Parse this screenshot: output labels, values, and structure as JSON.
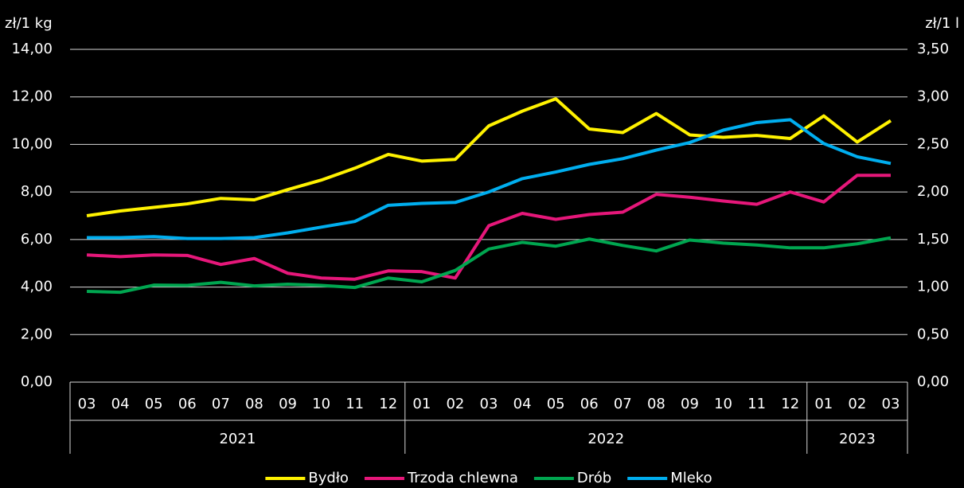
{
  "chart_data": {
    "type": "line",
    "y_label": "zł/1 kg",
    "y2_label": "zł/1 l",
    "categories": [
      "03",
      "04",
      "05",
      "06",
      "07",
      "08",
      "09",
      "10",
      "11",
      "12",
      "01",
      "02",
      "03",
      "04",
      "05",
      "06",
      "07",
      "08",
      "09",
      "10",
      "11",
      "12",
      "01",
      "02",
      "03"
    ],
    "year_groups": [
      {
        "label": "2021",
        "count": 10
      },
      {
        "label": "2022",
        "count": 12
      },
      {
        "label": "2023",
        "count": 3
      }
    ],
    "ylim": [
      0,
      14
    ],
    "yticks": [
      {
        "value": 0,
        "label": "0,00"
      },
      {
        "value": 2,
        "label": "2,00"
      },
      {
        "value": 4,
        "label": "4,00"
      },
      {
        "value": 6,
        "label": "6,00"
      },
      {
        "value": 8,
        "label": "8,00"
      },
      {
        "value": 10,
        "label": "10,00"
      },
      {
        "value": 12,
        "label": "12,00"
      },
      {
        "value": 14,
        "label": "14,00"
      }
    ],
    "y2lim": [
      0,
      3.5
    ],
    "y2ticks": [
      {
        "value": 0,
        "label": "0,00"
      },
      {
        "value": 0.5,
        "label": "0,50"
      },
      {
        "value": 1,
        "label": "1,00"
      },
      {
        "value": 1.5,
        "label": "1,50"
      },
      {
        "value": 2,
        "label": "2,00"
      },
      {
        "value": 2.5,
        "label": "2,50"
      },
      {
        "value": 3,
        "label": "3,00"
      },
      {
        "value": 3.5,
        "label": "3,50"
      }
    ],
    "grid": true,
    "legend": "bottom",
    "series": [
      {
        "name": "Bydło",
        "color": "#fff200",
        "values": [
          7.0,
          7.2,
          7.35,
          7.5,
          7.73,
          7.67,
          8.1,
          8.5,
          9.0,
          9.58,
          9.3,
          9.37,
          10.78,
          11.4,
          11.92,
          10.65,
          10.5,
          11.3,
          10.4,
          10.3,
          10.38,
          10.25,
          11.2,
          10.1,
          11.0
        ]
      },
      {
        "name": "Trzoda chlewna",
        "color": "#e6177a",
        "values": [
          5.35,
          5.28,
          5.35,
          5.33,
          4.95,
          5.2,
          4.58,
          4.38,
          4.33,
          4.68,
          4.65,
          4.38,
          6.58,
          7.1,
          6.85,
          7.05,
          7.15,
          7.9,
          7.78,
          7.62,
          7.48,
          8.0,
          7.58,
          8.7,
          8.7
        ]
      },
      {
        "name": "Drób",
        "color": "#00a650",
        "values": [
          3.82,
          3.78,
          4.08,
          4.07,
          4.2,
          4.05,
          4.12,
          4.07,
          3.98,
          4.38,
          4.22,
          4.7,
          5.6,
          5.88,
          5.72,
          6.02,
          5.75,
          5.52,
          5.98,
          5.85,
          5.77,
          5.65,
          5.65,
          5.82,
          6.07
        ]
      },
      {
        "name": "Mleko",
        "color": "#00aeef",
        "axis": "y2",
        "values": [
          1.52,
          1.52,
          1.53,
          1.51,
          1.51,
          1.52,
          1.57,
          1.63,
          1.69,
          1.86,
          1.88,
          1.89,
          2.0,
          2.14,
          2.21,
          2.29,
          2.35,
          2.44,
          2.52,
          2.65,
          2.73,
          2.76,
          2.51,
          2.37,
          2.3
        ]
      }
    ]
  }
}
